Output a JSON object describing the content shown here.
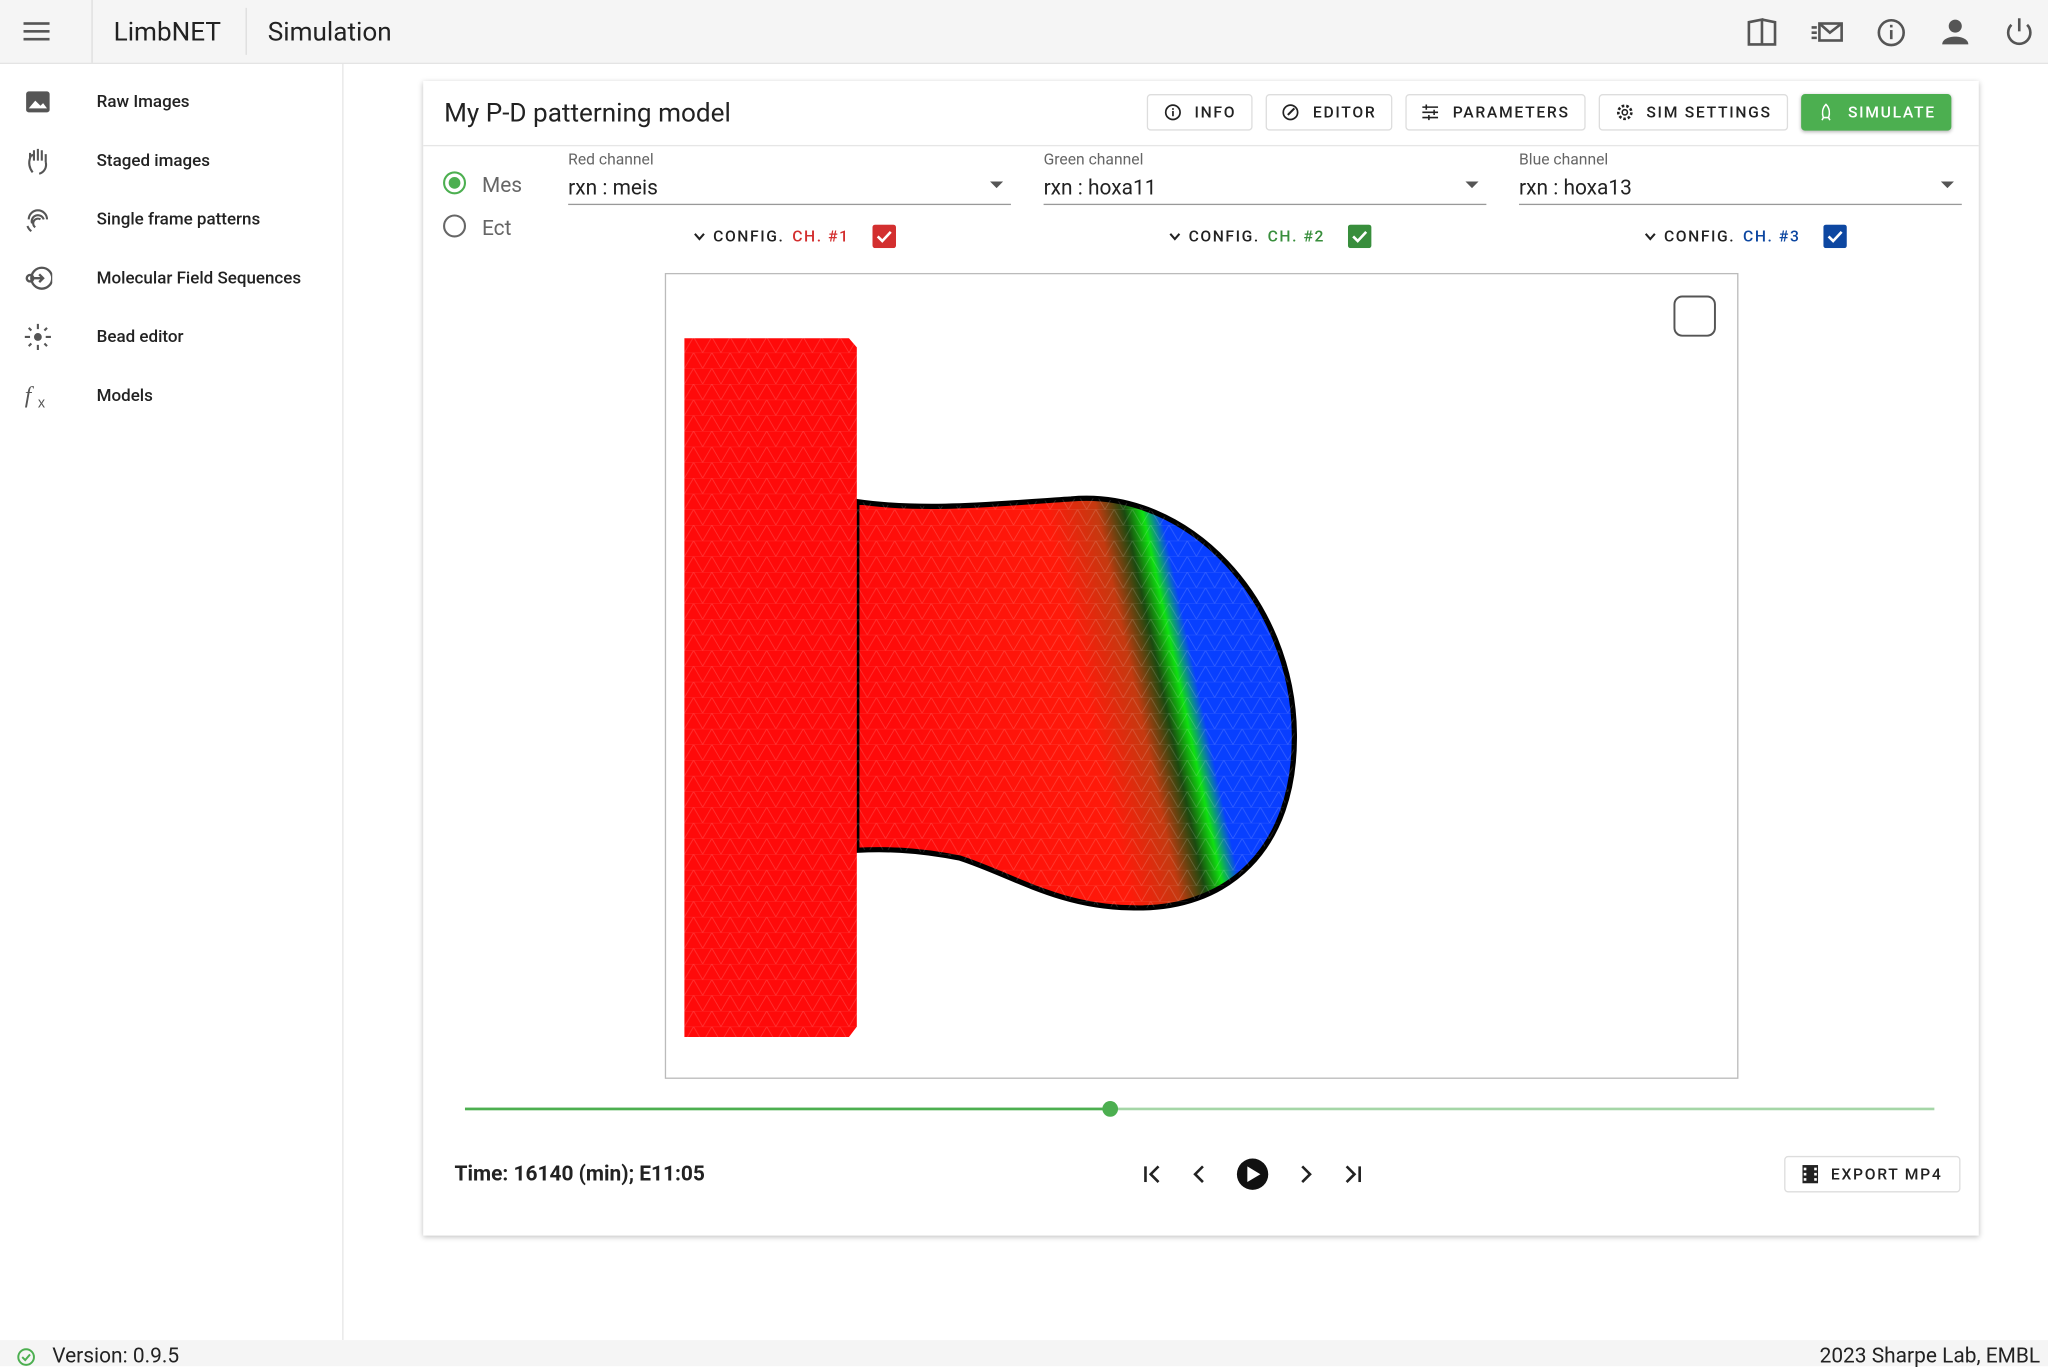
{
  "header": {
    "app_name": "LimbNET",
    "page_title": "Simulation"
  },
  "sidebar": {
    "items": [
      "Raw Images",
      "Staged images",
      "Single frame patterns",
      "Molecular Field Sequences",
      "Bead editor",
      "Models"
    ]
  },
  "model": {
    "title": "My P-D patterning model",
    "buttons": [
      "INFO",
      "EDITOR",
      "PARAMETERS",
      "SIM SETTINGS",
      "SIMULATE"
    ],
    "tissues": [
      "Mes",
      "Ect"
    ],
    "channels": [
      {
        "label": "Red channel",
        "value": "rxn : meis",
        "config": "CONFIG.",
        "ch": "CH. #1",
        "color": "#d32f2f"
      },
      {
        "label": "Green channel",
        "value": "rxn : hoxa11",
        "config": "CONFIG.",
        "ch": "CH. #2",
        "color": "#388e3c"
      },
      {
        "label": "Blue channel",
        "value": "rxn : hoxa13",
        "config": "CONFIG.",
        "ch": "CH. #3",
        "color": "#0d47a1"
      }
    ]
  },
  "playback": {
    "time": "Time: 16140 (min); E11:05",
    "export": "EXPORT MP4"
  },
  "footer": {
    "version": "Version: 0.9.5",
    "credit": "2023 Sharpe Lab, EMBL"
  }
}
